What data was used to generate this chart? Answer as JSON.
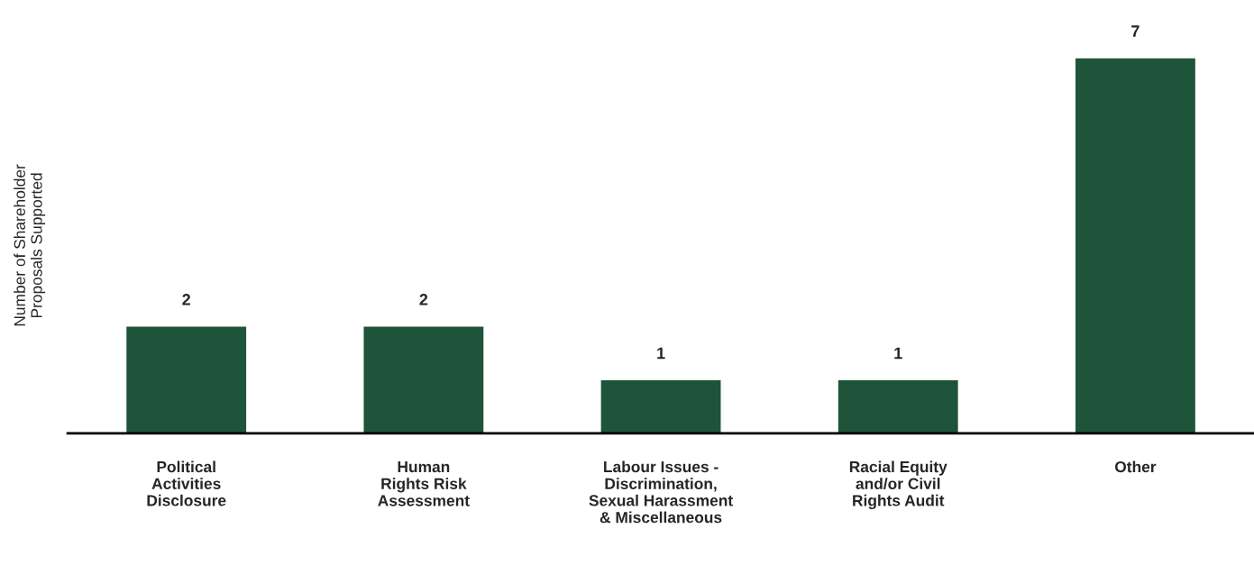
{
  "chart_data": {
    "type": "bar",
    "categories": [
      "Political\nActivities\nDisclosure",
      "Human\nRights Risk\nAssessment",
      "Labour Issues -\nDiscrimination,\nSexual Harassment\n& Miscellaneous",
      "Racial Equity\nand/or Civil\nRights Audit",
      "Other"
    ],
    "values": [
      2,
      2,
      1,
      1,
      7
    ],
    "color": "#1e5439",
    "ylabel": "Number of Shareholder\nProposals Supported",
    "data_labels": true,
    "grid": false,
    "legend": false
  }
}
